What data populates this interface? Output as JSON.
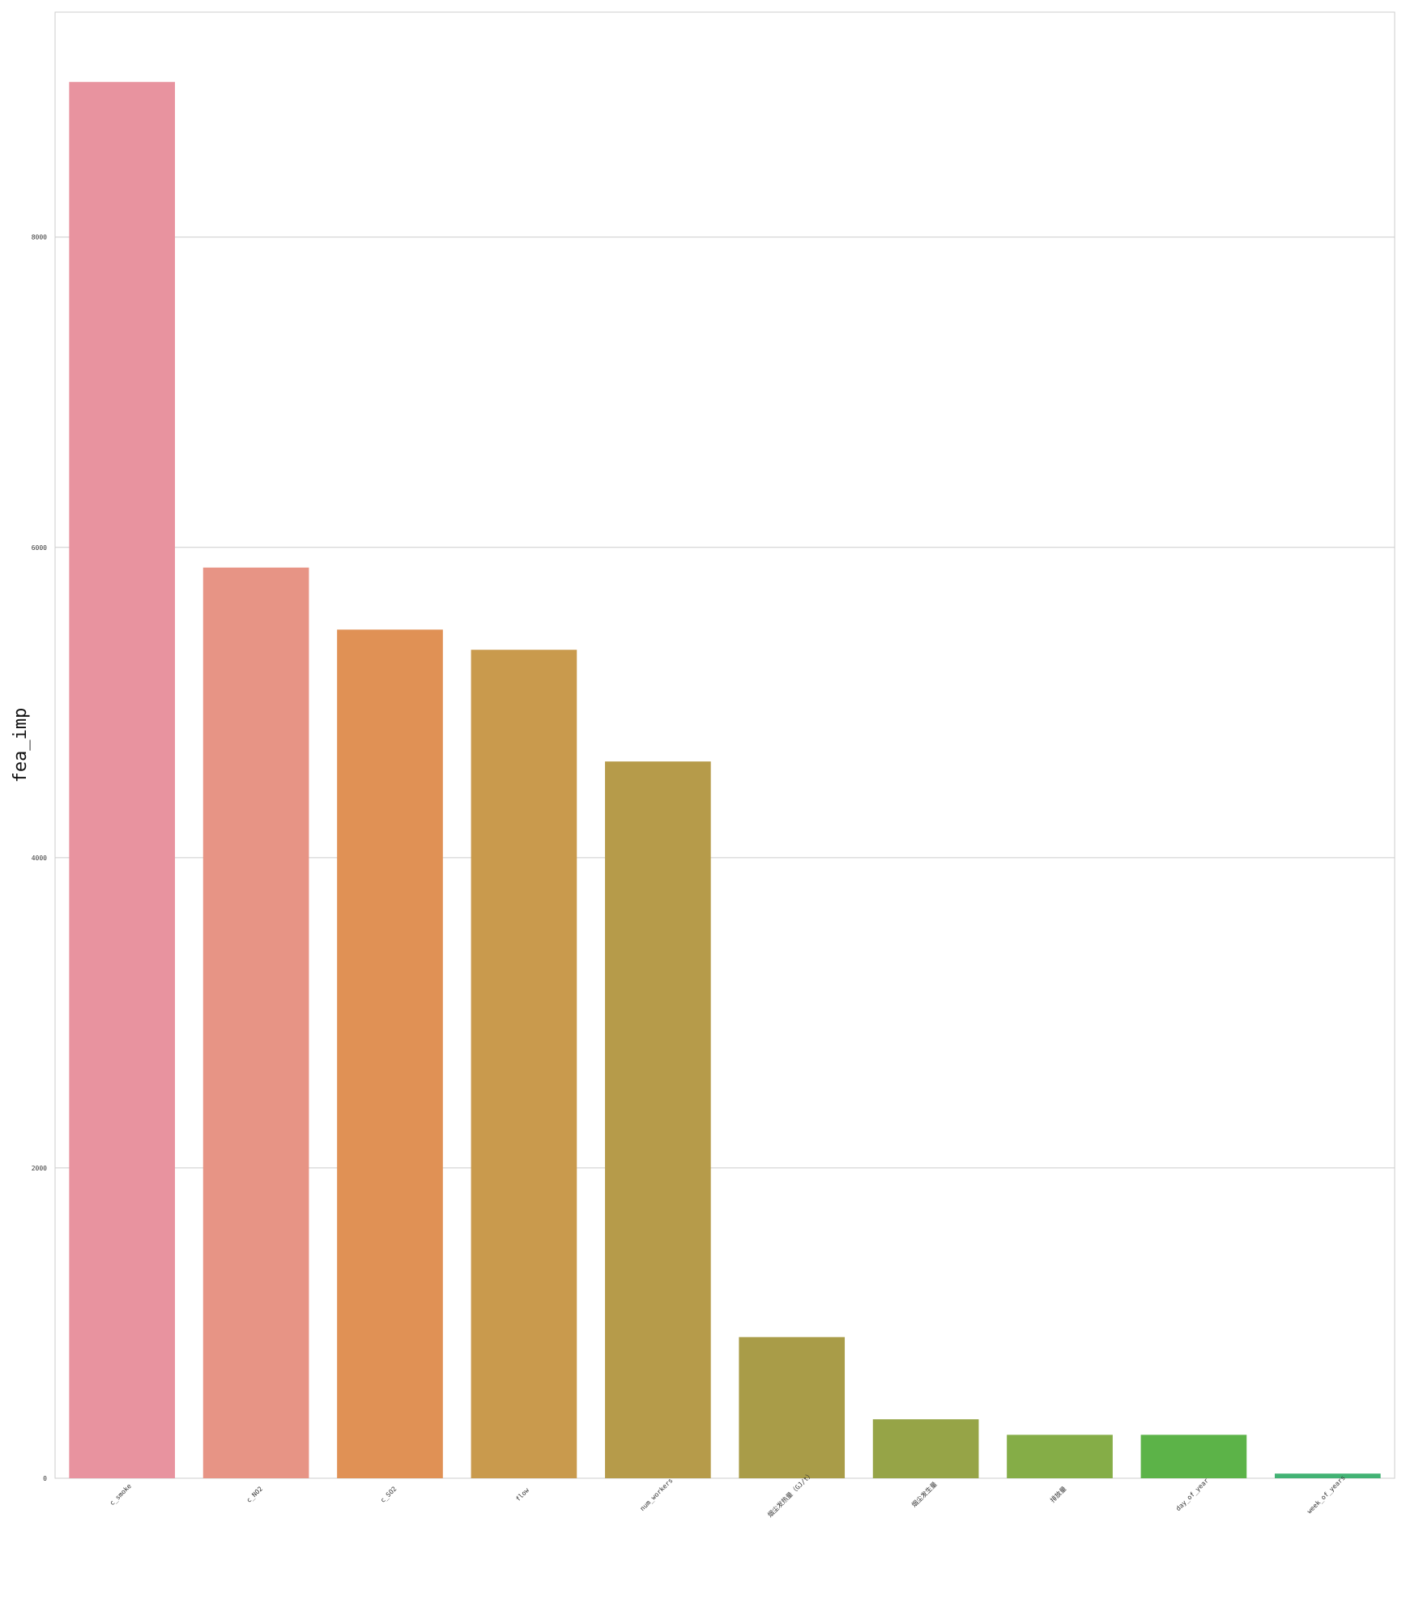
{
  "chart_data": {
    "type": "bar",
    "ylabel": "fea_imp",
    "xlabel": "",
    "title": "",
    "categories": [
      "c_smoke",
      "c_NO2",
      "c_SO2",
      "flow",
      "num_workers",
      "烟尘发热量（GJ/t）",
      "烟尘发生量",
      "排放量",
      "day_of_year",
      "week_of_years"
    ],
    "values": [
      9000,
      5870,
      5470,
      5340,
      4620,
      910,
      380,
      280,
      280,
      30
    ],
    "colors": [
      "#e8939f",
      "#e79485",
      "#e09155",
      "#c99a4d",
      "#b69b4a",
      "#a99c48",
      "#96a447",
      "#85ad47",
      "#5cb348",
      "#42b274"
    ],
    "yticks": [
      0,
      2000,
      4000,
      6000,
      8000
    ],
    "ylim": [
      0,
      9450
    ],
    "grid": true
  }
}
